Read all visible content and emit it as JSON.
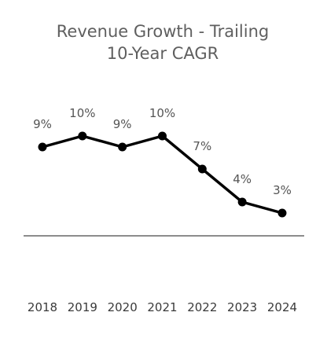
{
  "chart_data": {
    "type": "line",
    "title_lines": [
      "Revenue Growth - Trailing",
      "10-Year CAGR"
    ],
    "xlabel": "",
    "ylabel": "",
    "categories": [
      "2018",
      "2019",
      "2020",
      "2021",
      "2022",
      "2023",
      "2024"
    ],
    "series": [
      {
        "values": [
          9,
          10,
          9,
          10,
          7,
          4,
          3
        ],
        "labels": [
          "9%",
          "10%",
          "9%",
          "10%",
          "7%",
          "4%",
          "3%"
        ]
      }
    ],
    "ylim": [
      -1,
      14
    ],
    "grid": false,
    "legend": "none",
    "colors": {
      "line": "#000000",
      "baseline": "#8c8c8c",
      "title": "#5f5f5f",
      "labels": "#555555"
    }
  }
}
